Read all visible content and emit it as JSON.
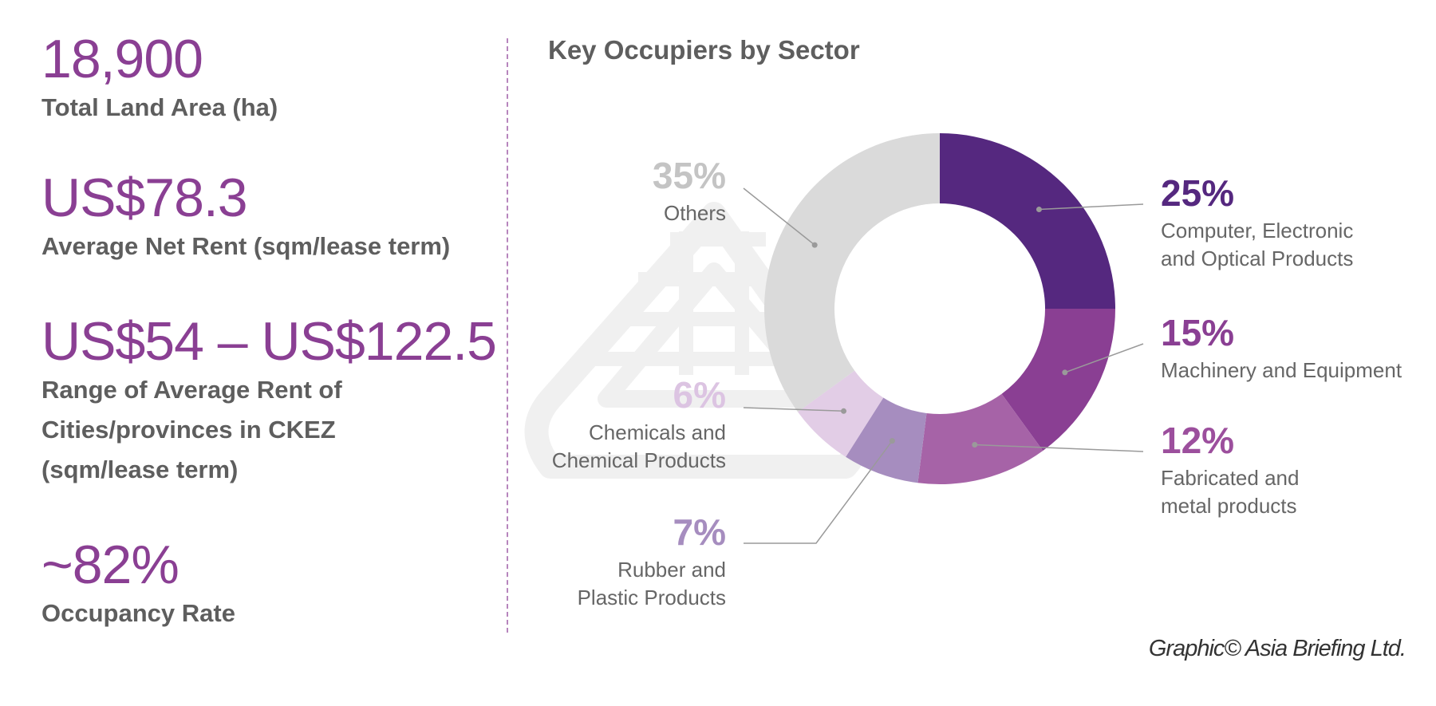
{
  "stats": [
    {
      "value": "18,900",
      "label": [
        "Total Land Area (ha)"
      ]
    },
    {
      "value": "US$78.3",
      "label": [
        "Average Net Rent (sqm/lease term)"
      ]
    },
    {
      "value": "US$54 – US$122.5",
      "label": [
        "Range of Average Rent of",
        "Cities/provinces in CKEZ",
        "(sqm/lease term)"
      ]
    },
    {
      "value": "~82%",
      "label": [
        "Occupancy Rate"
      ]
    }
  ],
  "credit": "Graphic© Asia Briefing Ltd.",
  "colors": {
    "value_text": "#8a3f93",
    "label_text": "#5e5e5e",
    "divider": "#b785bd",
    "leader_line": "#9a9a9a",
    "watermark": "#f0f0f0"
  },
  "chart_data": {
    "type": "pie",
    "title": "Key Occupiers by Sector",
    "donut": true,
    "start_angle_deg": 0,
    "direction": "clockwise",
    "slices": [
      {
        "pct_label": "25%",
        "value": 25,
        "label": [
          "Computer, Electronic",
          "and Optical Products"
        ],
        "color": "#55287f",
        "label_color": "#55287f",
        "side": "right"
      },
      {
        "pct_label": "15%",
        "value": 15,
        "label": [
          "Machinery and Equipment"
        ],
        "color": "#8a3f93",
        "label_color": "#8a3f93",
        "side": "right"
      },
      {
        "pct_label": "12%",
        "value": 12,
        "label": [
          "Fabricated and",
          "metal products"
        ],
        "color": "#a663a7",
        "label_color": "#9c4f9d",
        "side": "right"
      },
      {
        "pct_label": "7%",
        "value": 7,
        "label": [
          "Rubber and",
          "Plastic Products"
        ],
        "color": "#a68dbf",
        "label_color": "#a68dbf",
        "side": "left"
      },
      {
        "pct_label": "6%",
        "value": 6,
        "label": [
          "Chemicals and",
          "Chemical Products"
        ],
        "color": "#e2cde6",
        "label_color": "#dcc4e2",
        "side": "left"
      },
      {
        "pct_label": "35%",
        "value": 35,
        "label": [
          "Others"
        ],
        "color": "#dadada",
        "label_color": "#c4c4c4",
        "side": "left"
      }
    ]
  }
}
